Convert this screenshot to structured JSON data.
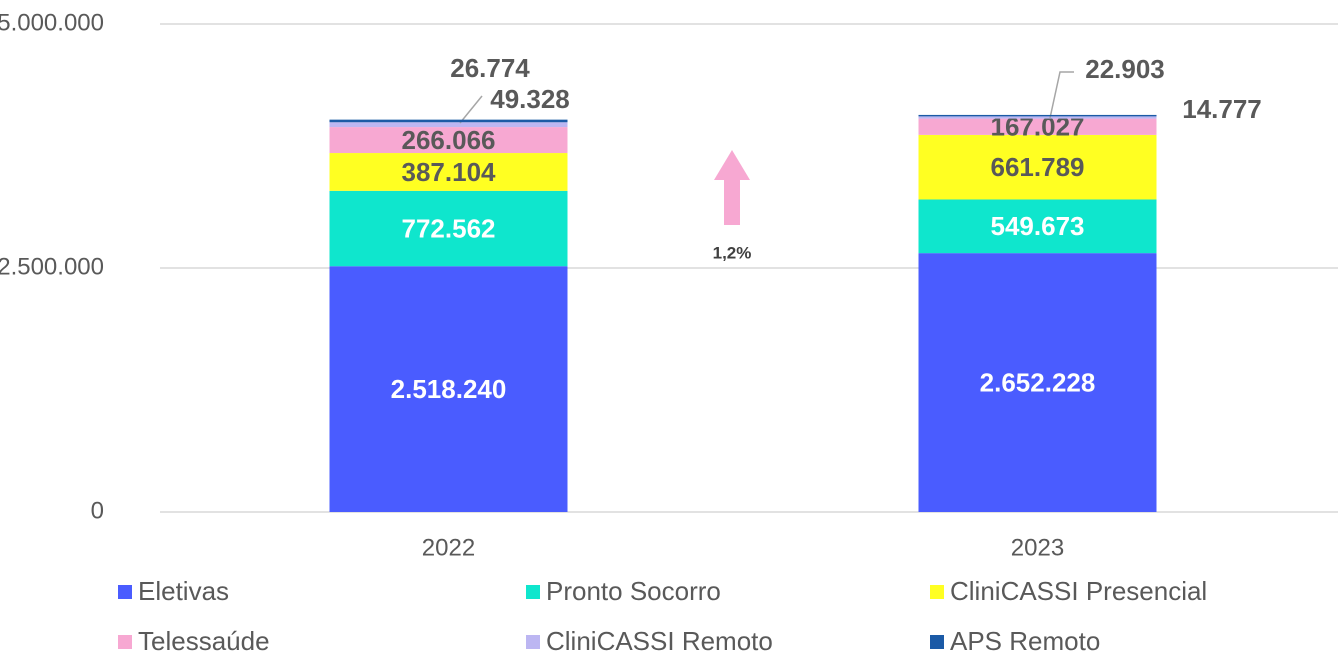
{
  "chart_data": {
    "type": "stacked_bar",
    "categories": [
      "2022",
      "2023"
    ],
    "series": [
      {
        "name": "Eletivas",
        "color": "#4a5cff",
        "values": [
          2518240,
          2652228
        ],
        "value_labels": [
          "2.518.240",
          "2.652.228"
        ]
      },
      {
        "name": "Pronto Socorro",
        "color": "#0fe6cd",
        "values": [
          772562,
          549673
        ],
        "value_labels": [
          "772.562",
          "549.673"
        ]
      },
      {
        "name": "CliniCASSI Presencial",
        "color": "#ffff22",
        "values": [
          387104,
          661789
        ],
        "value_labels": [
          "387.104",
          "661.789"
        ]
      },
      {
        "name": "Telessaúde",
        "color": "#f7a8d2",
        "values": [
          266066,
          167027
        ],
        "value_labels": [
          "266.066",
          "167.027"
        ]
      },
      {
        "name": "CliniCASSI Remoto",
        "color": "#bcb6f2",
        "values": [
          49328,
          22903
        ],
        "value_labels": [
          "49.328",
          "22.903"
        ]
      },
      {
        "name": "APS Remoto",
        "color": "#1b5aa6",
        "values": [
          26774,
          14777
        ],
        "value_labels": [
          "26.774",
          "14.777"
        ]
      }
    ],
    "annotations": [
      "1,2%"
    ],
    "ylim": [
      0,
      5000000
    ],
    "yticks": [
      0,
      {
        "value": 2500000,
        "label": "2.500.000"
      },
      {
        "value": 5000000,
        "label": "5.000.000"
      }
    ],
    "grid": true
  }
}
